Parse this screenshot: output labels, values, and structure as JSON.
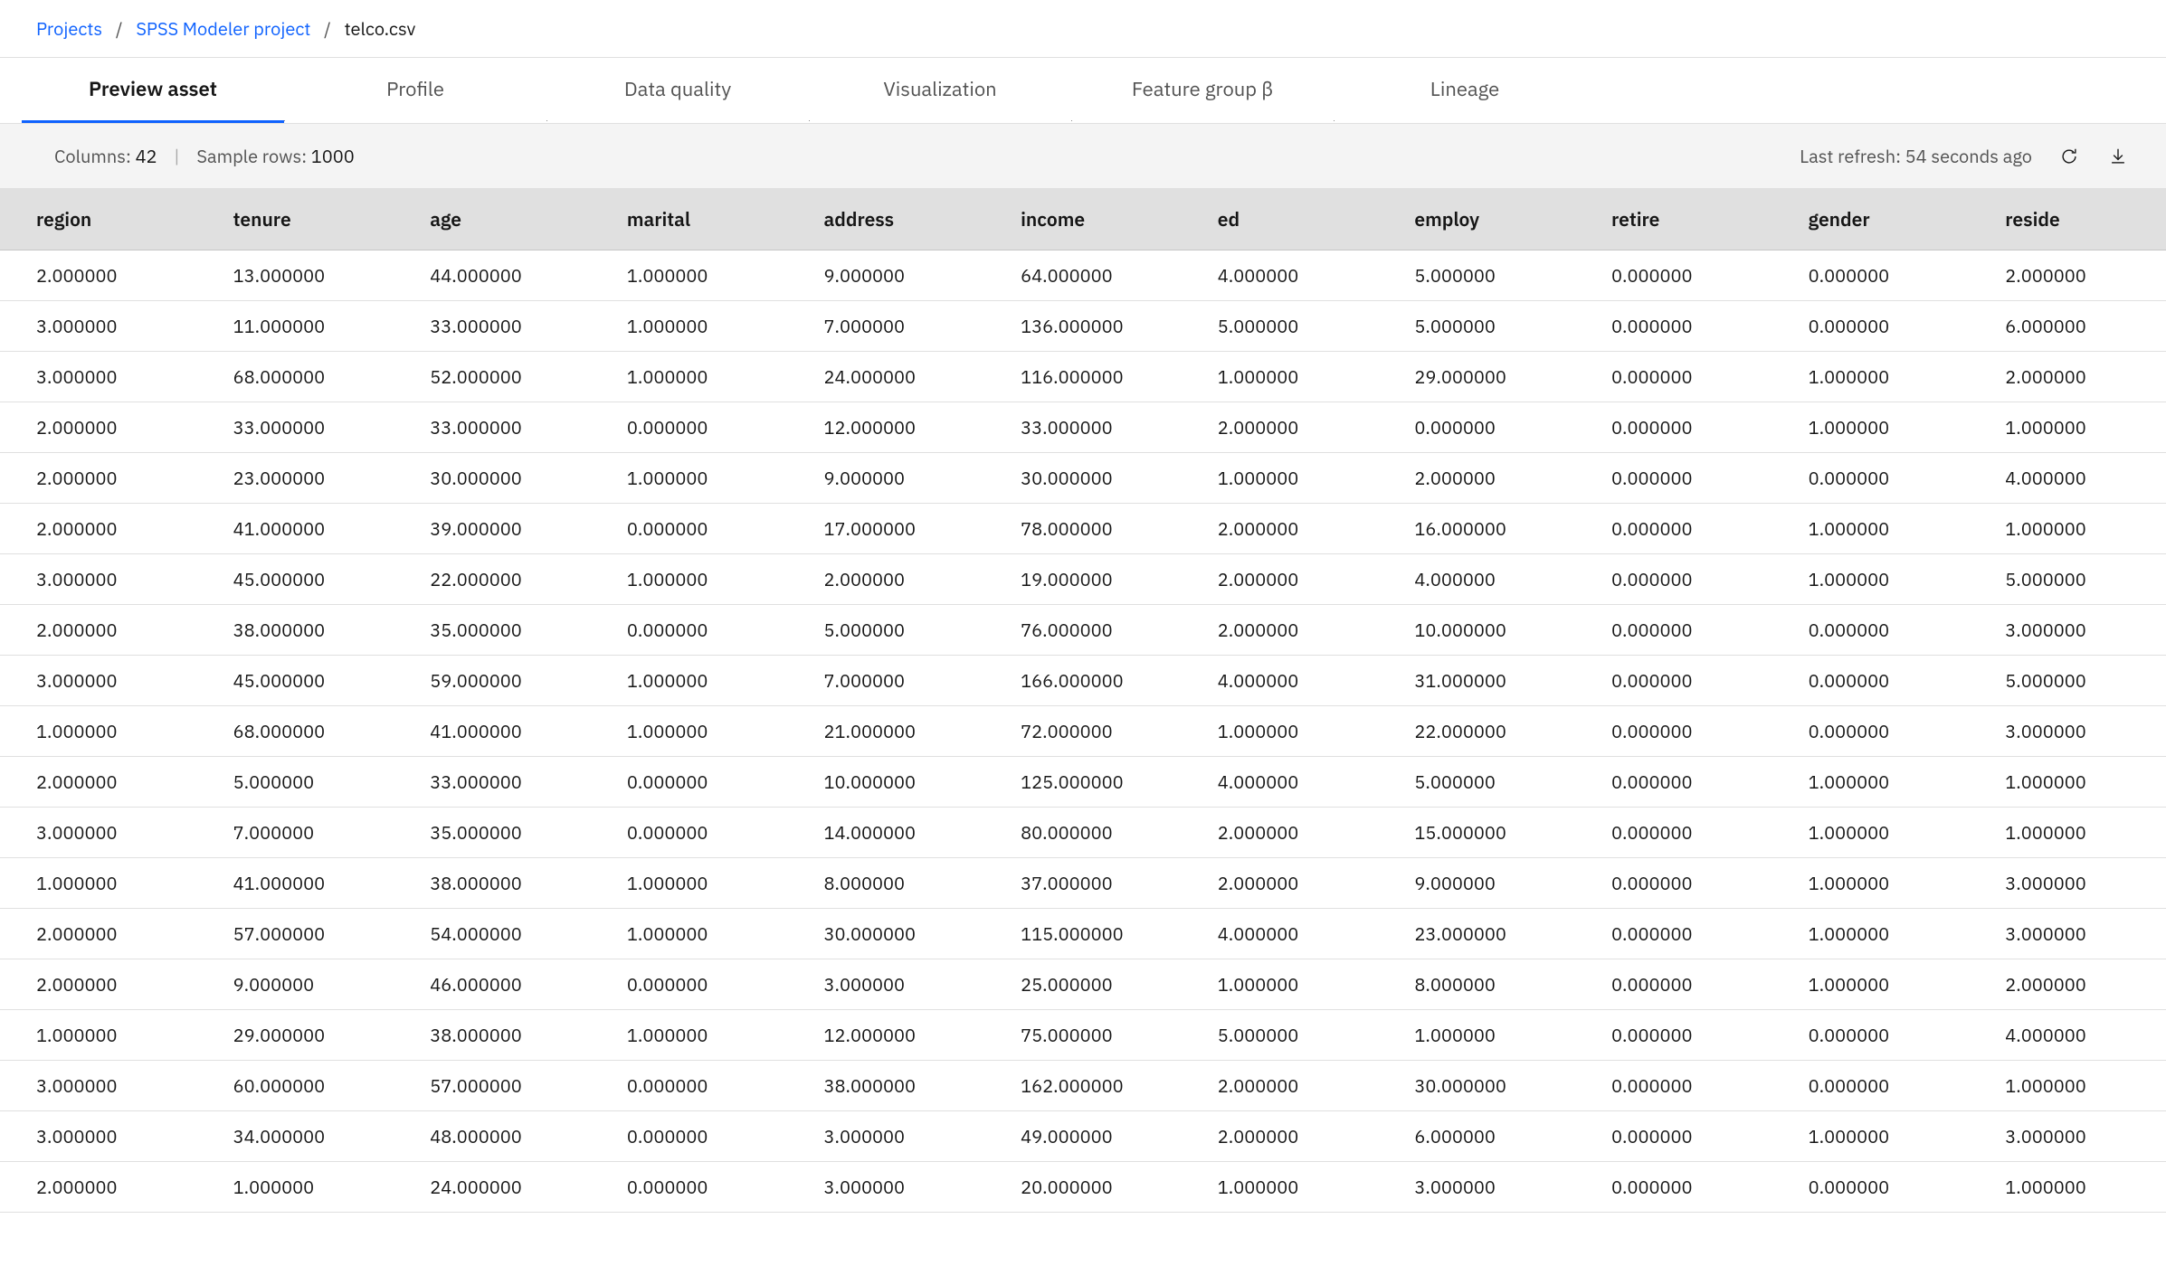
{
  "breadcrumb": {
    "root": "Projects",
    "project": "SPSS Modeler project",
    "asset": "telco.csv"
  },
  "tabs": [
    {
      "label": "Preview asset",
      "active": true
    },
    {
      "label": "Profile",
      "active": false
    },
    {
      "label": "Data quality",
      "active": false
    },
    {
      "label": "Visualization",
      "active": false
    },
    {
      "label": "Feature group β",
      "active": false
    },
    {
      "label": "Lineage",
      "active": false
    }
  ],
  "meta": {
    "columns_label": "Columns:",
    "columns_value": "42",
    "sample_label": "Sample rows:",
    "sample_value": "1000",
    "last_refresh": "Last refresh: 54 seconds ago"
  },
  "table": {
    "columns": [
      "region",
      "tenure",
      "age",
      "marital",
      "address",
      "income",
      "ed",
      "employ",
      "retire",
      "gender",
      "reside"
    ],
    "rows": [
      [
        "2.000000",
        "13.000000",
        "44.000000",
        "1.000000",
        "9.000000",
        "64.000000",
        "4.000000",
        "5.000000",
        "0.000000",
        "0.000000",
        "2.000000"
      ],
      [
        "3.000000",
        "11.000000",
        "33.000000",
        "1.000000",
        "7.000000",
        "136.000000",
        "5.000000",
        "5.000000",
        "0.000000",
        "0.000000",
        "6.000000"
      ],
      [
        "3.000000",
        "68.000000",
        "52.000000",
        "1.000000",
        "24.000000",
        "116.000000",
        "1.000000",
        "29.000000",
        "0.000000",
        "1.000000",
        "2.000000"
      ],
      [
        "2.000000",
        "33.000000",
        "33.000000",
        "0.000000",
        "12.000000",
        "33.000000",
        "2.000000",
        "0.000000",
        "0.000000",
        "1.000000",
        "1.000000"
      ],
      [
        "2.000000",
        "23.000000",
        "30.000000",
        "1.000000",
        "9.000000",
        "30.000000",
        "1.000000",
        "2.000000",
        "0.000000",
        "0.000000",
        "4.000000"
      ],
      [
        "2.000000",
        "41.000000",
        "39.000000",
        "0.000000",
        "17.000000",
        "78.000000",
        "2.000000",
        "16.000000",
        "0.000000",
        "1.000000",
        "1.000000"
      ],
      [
        "3.000000",
        "45.000000",
        "22.000000",
        "1.000000",
        "2.000000",
        "19.000000",
        "2.000000",
        "4.000000",
        "0.000000",
        "1.000000",
        "5.000000"
      ],
      [
        "2.000000",
        "38.000000",
        "35.000000",
        "0.000000",
        "5.000000",
        "76.000000",
        "2.000000",
        "10.000000",
        "0.000000",
        "0.000000",
        "3.000000"
      ],
      [
        "3.000000",
        "45.000000",
        "59.000000",
        "1.000000",
        "7.000000",
        "166.000000",
        "4.000000",
        "31.000000",
        "0.000000",
        "0.000000",
        "5.000000"
      ],
      [
        "1.000000",
        "68.000000",
        "41.000000",
        "1.000000",
        "21.000000",
        "72.000000",
        "1.000000",
        "22.000000",
        "0.000000",
        "0.000000",
        "3.000000"
      ],
      [
        "2.000000",
        "5.000000",
        "33.000000",
        "0.000000",
        "10.000000",
        "125.000000",
        "4.000000",
        "5.000000",
        "0.000000",
        "1.000000",
        "1.000000"
      ],
      [
        "3.000000",
        "7.000000",
        "35.000000",
        "0.000000",
        "14.000000",
        "80.000000",
        "2.000000",
        "15.000000",
        "0.000000",
        "1.000000",
        "1.000000"
      ],
      [
        "1.000000",
        "41.000000",
        "38.000000",
        "1.000000",
        "8.000000",
        "37.000000",
        "2.000000",
        "9.000000",
        "0.000000",
        "1.000000",
        "3.000000"
      ],
      [
        "2.000000",
        "57.000000",
        "54.000000",
        "1.000000",
        "30.000000",
        "115.000000",
        "4.000000",
        "23.000000",
        "0.000000",
        "1.000000",
        "3.000000"
      ],
      [
        "2.000000",
        "9.000000",
        "46.000000",
        "0.000000",
        "3.000000",
        "25.000000",
        "1.000000",
        "8.000000",
        "0.000000",
        "1.000000",
        "2.000000"
      ],
      [
        "1.000000",
        "29.000000",
        "38.000000",
        "1.000000",
        "12.000000",
        "75.000000",
        "5.000000",
        "1.000000",
        "0.000000",
        "0.000000",
        "4.000000"
      ],
      [
        "3.000000",
        "60.000000",
        "57.000000",
        "0.000000",
        "38.000000",
        "162.000000",
        "2.000000",
        "30.000000",
        "0.000000",
        "0.000000",
        "1.000000"
      ],
      [
        "3.000000",
        "34.000000",
        "48.000000",
        "0.000000",
        "3.000000",
        "49.000000",
        "2.000000",
        "6.000000",
        "0.000000",
        "1.000000",
        "3.000000"
      ],
      [
        "2.000000",
        "1.000000",
        "24.000000",
        "0.000000",
        "3.000000",
        "20.000000",
        "1.000000",
        "3.000000",
        "0.000000",
        "0.000000",
        "1.000000"
      ]
    ]
  }
}
